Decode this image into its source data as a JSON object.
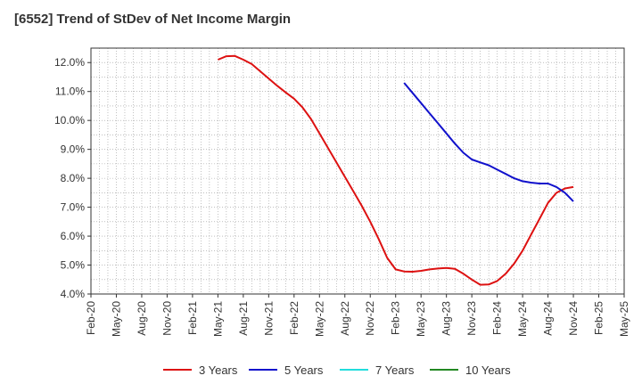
{
  "chart_data": {
    "type": "line",
    "title": "[6552]  Trend of StDev of Net Income Margin",
    "xlabel": "",
    "ylabel": "",
    "x_ticks": [
      "Feb-20",
      "May-20",
      "Aug-20",
      "Nov-20",
      "Feb-21",
      "May-21",
      "Aug-21",
      "Nov-21",
      "Feb-22",
      "May-22",
      "Aug-22",
      "Nov-22",
      "Feb-23",
      "May-23",
      "Aug-23",
      "Nov-23",
      "Feb-24",
      "May-24",
      "Aug-24",
      "Nov-24",
      "Feb-25",
      "May-25"
    ],
    "y_ticks": [
      "4.0%",
      "5.0%",
      "6.0%",
      "7.0%",
      "8.0%",
      "9.0%",
      "10.0%",
      "11.0%",
      "12.0%"
    ],
    "ylim": [
      4.0,
      12.5
    ],
    "grid": true,
    "legend_position": "bottom",
    "series": [
      {
        "name": "3 Years",
        "color": "#dd1111",
        "points": [
          [
            "May-21",
            12.1
          ],
          [
            "Jun-21",
            12.22
          ],
          [
            "Jul-21",
            12.23
          ],
          [
            "Aug-21",
            12.1
          ],
          [
            "Sep-21",
            11.95
          ],
          [
            "Oct-21",
            11.7
          ],
          [
            "Nov-21",
            11.45
          ],
          [
            "Dec-21",
            11.2
          ],
          [
            "Jan-22",
            10.97
          ],
          [
            "Feb-22",
            10.75
          ],
          [
            "Mar-22",
            10.45
          ],
          [
            "Apr-22",
            10.05
          ],
          [
            "May-22",
            9.55
          ],
          [
            "Jun-22",
            9.05
          ],
          [
            "Jul-22",
            8.55
          ],
          [
            "Aug-22",
            8.05
          ],
          [
            "Sep-22",
            7.55
          ],
          [
            "Oct-22",
            7.05
          ],
          [
            "Nov-22",
            6.5
          ],
          [
            "Dec-22",
            5.9
          ],
          [
            "Jan-23",
            5.25
          ],
          [
            "Feb-23",
            4.85
          ],
          [
            "Mar-23",
            4.78
          ],
          [
            "Apr-23",
            4.77
          ],
          [
            "May-23",
            4.8
          ],
          [
            "Jun-23",
            4.85
          ],
          [
            "Jul-23",
            4.88
          ],
          [
            "Aug-23",
            4.9
          ],
          [
            "Sep-23",
            4.87
          ],
          [
            "Oct-23",
            4.7
          ],
          [
            "Nov-23",
            4.5
          ],
          [
            "Dec-23",
            4.32
          ],
          [
            "Jan-24",
            4.33
          ],
          [
            "Feb-24",
            4.45
          ],
          [
            "Mar-24",
            4.7
          ],
          [
            "Apr-24",
            5.05
          ],
          [
            "May-24",
            5.5
          ],
          [
            "Jun-24",
            6.05
          ],
          [
            "Jul-24",
            6.6
          ],
          [
            "Aug-24",
            7.15
          ],
          [
            "Sep-24",
            7.5
          ],
          [
            "Oct-24",
            7.65
          ],
          [
            "Nov-24",
            7.7
          ]
        ]
      },
      {
        "name": "5 Years",
        "color": "#1111cc",
        "points": [
          [
            "Mar-23",
            11.3
          ],
          [
            "Apr-23",
            10.95
          ],
          [
            "May-23",
            10.6
          ],
          [
            "Jun-23",
            10.25
          ],
          [
            "Jul-23",
            9.9
          ],
          [
            "Aug-23",
            9.55
          ],
          [
            "Sep-23",
            9.2
          ],
          [
            "Oct-23",
            8.88
          ],
          [
            "Nov-23",
            8.65
          ],
          [
            "Dec-23",
            8.55
          ],
          [
            "Jan-24",
            8.45
          ],
          [
            "Feb-24",
            8.3
          ],
          [
            "Mar-24",
            8.15
          ],
          [
            "Apr-24",
            8.0
          ],
          [
            "May-24",
            7.9
          ],
          [
            "Jun-24",
            7.85
          ],
          [
            "Jul-24",
            7.82
          ],
          [
            "Aug-24",
            7.82
          ],
          [
            "Sep-24",
            7.7
          ],
          [
            "Oct-24",
            7.5
          ],
          [
            "Nov-24",
            7.2
          ]
        ]
      },
      {
        "name": "7 Years",
        "color": "#22dddd",
        "points": []
      },
      {
        "name": "10 Years",
        "color": "#228822",
        "points": []
      }
    ]
  }
}
